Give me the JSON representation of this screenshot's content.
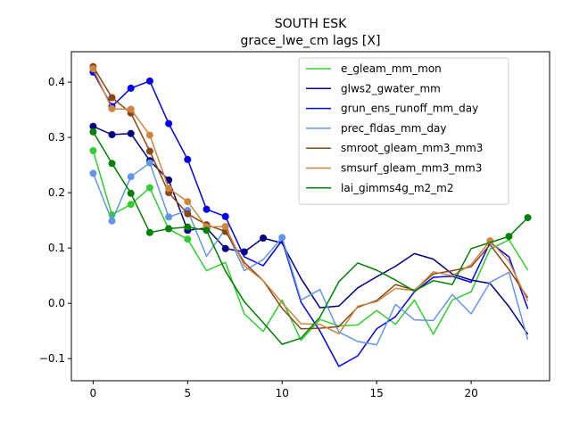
{
  "chart_data": {
    "type": "line",
    "title": "SOUTH ESK",
    "subtitle": "grace_lwe_cm lags [X]",
    "xlabel": "",
    "ylabel": "",
    "xlim": [
      -1.15,
      24.15
    ],
    "ylim": [
      -0.14,
      0.455
    ],
    "xticks": [
      0,
      5,
      10,
      15,
      20
    ],
    "yticks": [
      -0.1,
      0.0,
      0.1,
      0.2,
      0.3,
      0.4
    ],
    "ytick_labels": [
      "−0.1",
      "0.0",
      "0.1",
      "0.2",
      "0.3",
      "0.4"
    ],
    "grid": false,
    "legend_position": "top-right",
    "x": [
      0,
      1,
      2,
      3,
      4,
      5,
      6,
      7,
      8,
      9,
      10,
      11,
      12,
      13,
      14,
      15,
      16,
      17,
      18,
      19,
      20,
      21,
      22,
      23
    ],
    "series": [
      {
        "name": "e_gleam_mm_mon",
        "color": "#32cd32",
        "values": [
          0.276,
          0.16,
          0.179,
          0.209,
          0.134,
          0.116,
          0.059,
          0.074,
          -0.019,
          -0.051,
          0.006,
          -0.067,
          -0.029,
          -0.041,
          -0.039,
          -0.013,
          -0.038,
          0.006,
          -0.056,
          0.006,
          0.021,
          0.098,
          0.115,
          0.06
        ],
        "markers": [
          0,
          1,
          2,
          3,
          5
        ]
      },
      {
        "name": "glws2_gwater_mm",
        "color": "#000080",
        "values": [
          0.32,
          0.305,
          0.307,
          0.258,
          0.223,
          0.132,
          0.136,
          0.099,
          0.093,
          0.118,
          0.109,
          0.045,
          -0.008,
          -0.005,
          0.028,
          0.048,
          0.067,
          0.09,
          0.08,
          0.053,
          0.042,
          0.036,
          -0.006,
          -0.056
        ],
        "markers": [
          0,
          1,
          2,
          3,
          4,
          5,
          6,
          7,
          8,
          9
        ]
      },
      {
        "name": "grun_ens_runoff_mm_day",
        "color": "#0000ee",
        "values": [
          0.418,
          0.356,
          0.389,
          0.402,
          0.325,
          0.26,
          0.17,
          0.157,
          0.084,
          0.068,
          0.114,
          0.002,
          -0.05,
          -0.114,
          -0.095,
          -0.046,
          -0.024,
          0.021,
          0.047,
          0.049,
          0.038,
          0.11,
          0.084,
          -0.01
        ],
        "markers": [
          0,
          1,
          2,
          3,
          4,
          5,
          6,
          7
        ]
      },
      {
        "name": "prec_fldas_mm_day",
        "color": "#6495ed",
        "values": [
          0.235,
          0.149,
          0.229,
          0.254,
          0.156,
          0.168,
          0.085,
          0.135,
          0.059,
          0.079,
          0.119,
          0.006,
          0.025,
          -0.052,
          -0.069,
          -0.075,
          -0.002,
          -0.03,
          -0.031,
          0.016,
          -0.019,
          0.038,
          0.056,
          -0.066
        ],
        "markers": [
          0,
          1,
          2,
          3,
          4,
          5,
          10
        ]
      },
      {
        "name": "smroot_gleam_mm3_mm3",
        "color": "#8b4513",
        "values": [
          0.428,
          0.372,
          0.344,
          0.275,
          0.2,
          0.162,
          0.142,
          0.13,
          0.074,
          0.041,
          -0.009,
          -0.046,
          -0.045,
          -0.042,
          -0.007,
          0.005,
          0.034,
          0.024,
          0.053,
          0.059,
          0.066,
          0.106,
          0.061,
          0.01
        ],
        "markers": [
          0,
          1,
          2,
          3,
          4,
          5,
          6,
          7
        ]
      },
      {
        "name": "smsurf_gleam_mm3_mm3",
        "color": "#cd853f",
        "values": [
          0.424,
          0.352,
          0.351,
          0.304,
          0.208,
          0.184,
          0.138,
          0.139,
          0.068,
          0.041,
          0.001,
          -0.037,
          -0.038,
          -0.055,
          -0.005,
          0.003,
          0.027,
          0.023,
          0.057,
          0.05,
          0.07,
          0.113,
          0.076,
          0.004
        ],
        "markers": [
          0,
          1,
          2,
          3,
          4,
          5,
          6,
          7,
          21
        ]
      },
      {
        "name": "lai_gimms4g_m2_m2",
        "color": "#008000",
        "values": [
          0.31,
          0.253,
          0.199,
          0.128,
          0.135,
          0.138,
          0.132,
          0.058,
          0.003,
          -0.035,
          -0.074,
          -0.063,
          -0.025,
          0.039,
          0.073,
          0.06,
          0.042,
          0.022,
          0.041,
          0.034,
          0.099,
          0.11,
          0.121,
          0.155
        ],
        "markers": [
          0,
          1,
          2,
          3,
          4,
          5,
          6,
          22,
          23
        ]
      }
    ]
  }
}
